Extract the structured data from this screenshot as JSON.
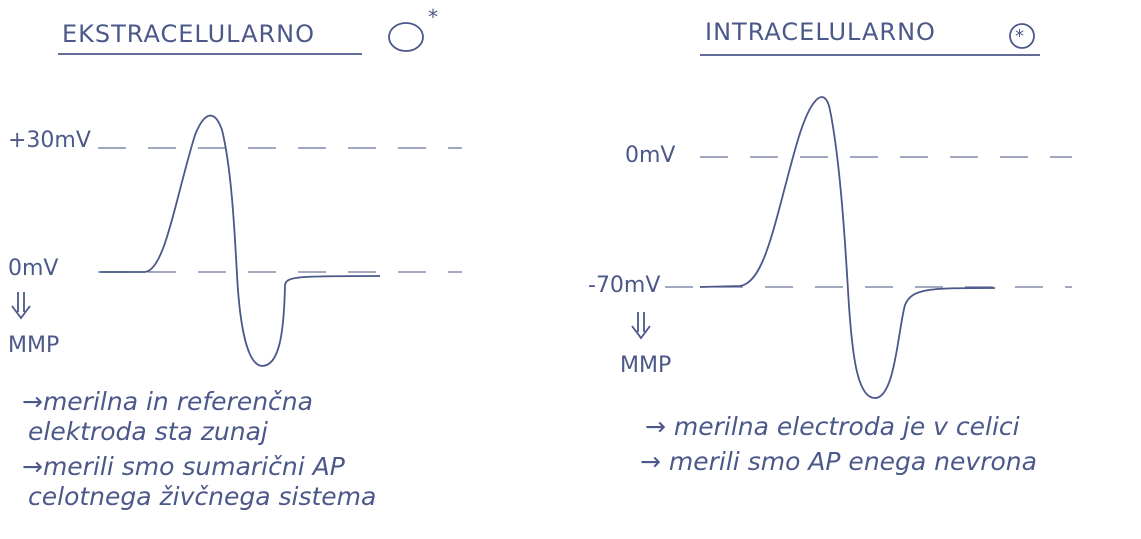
{
  "panels": [
    {
      "title": "EKSTRACELULARNO",
      "levels": [
        "+30mV",
        "0mV"
      ],
      "mmp": "MMP",
      "notes": [
        [
          "→merilna in referenčna",
          "elektroda sta zunaj"
        ],
        [
          "→merili smo sumarični AP",
          "celotnega živčnega sistema"
        ]
      ]
    },
    {
      "title": "INTRACELULARNO",
      "levels": [
        "0mV",
        "-70mV"
      ],
      "mmp": "MMP",
      "notes": [
        [
          "→ merilna electroda je v celici"
        ],
        [
          "→ merili smo AP enega nevrona"
        ]
      ]
    }
  ]
}
